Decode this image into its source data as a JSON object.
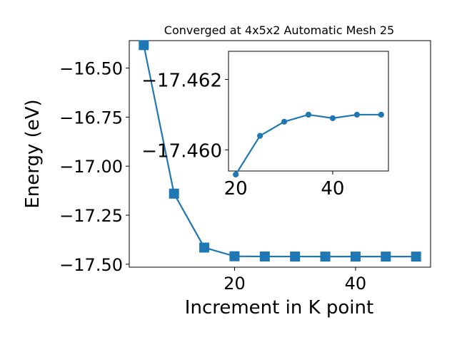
{
  "chart_data": {
    "type": "line",
    "title": "Converged at 4x5x2 Automatic Mesh 25",
    "xlabel": "Increment in K point",
    "ylabel": "Energy (eV)",
    "xlim": [
      2.6,
      52.4
    ],
    "ylim": [
      -17.515,
      -16.36
    ],
    "xticks": [
      20,
      40
    ],
    "yticks": [
      -16.5,
      -16.75,
      -17.0,
      -17.25,
      -17.5
    ],
    "ytick_labels": [
      "−16.50",
      "−16.75",
      "−17.00",
      "−17.25",
      "−17.50"
    ],
    "series": [
      {
        "color": "#1f77b4",
        "marker": "square",
        "x": [
          5,
          10,
          15,
          20,
          25,
          30,
          35,
          40,
          45,
          50
        ],
        "y": [
          -16.383,
          -17.14,
          -17.415,
          -17.4593,
          -17.4604,
          -17.4608,
          -17.461,
          -17.4609,
          -17.461,
          -17.461
        ]
      }
    ],
    "inset": {
      "type": "line",
      "xlim": [
        18.5,
        51.5
      ],
      "ylim": [
        -17.4594,
        -17.4628
      ],
      "xticks": [
        20,
        40
      ],
      "yticks": [
        -17.462,
        -17.46
      ],
      "ytick_labels": [
        "−17.462",
        "−17.460"
      ],
      "series": [
        {
          "color": "#1f77b4",
          "marker": "circle",
          "x": [
            20,
            25,
            30,
            35,
            40,
            45,
            50
          ],
          "y": [
            -17.4593,
            -17.4604,
            -17.4608,
            -17.461,
            -17.4609,
            -17.461,
            -17.461
          ]
        }
      ]
    }
  }
}
